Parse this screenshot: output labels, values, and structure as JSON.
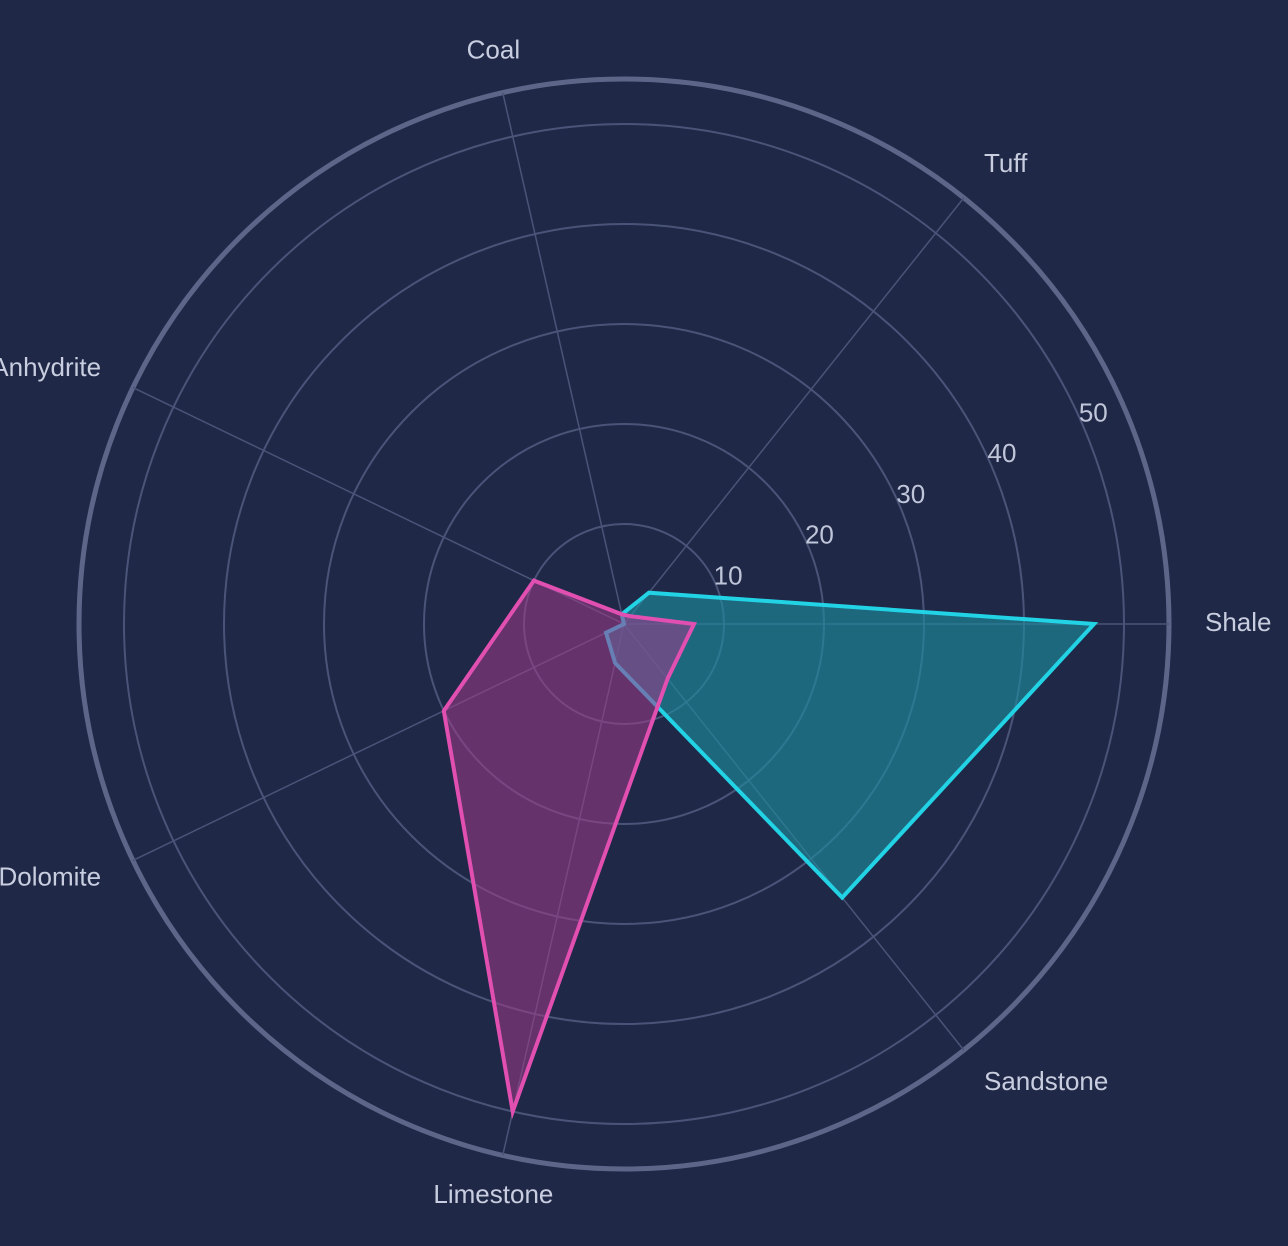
{
  "colors": {
    "background": "#1f2846",
    "grid": "#4a5478",
    "outer_ring": "#5d6689",
    "label": "#c8cee0",
    "tick_label": "#c0c6da"
  },
  "chart_data": {
    "type": "radar",
    "title": "",
    "categories": [
      "Shale",
      "Sandstone",
      "Limestone",
      "Dolomite",
      "Anhydrite",
      "Coal",
      "Tuff"
    ],
    "radial_ticks": [
      "10",
      "20",
      "30",
      "40",
      "50"
    ],
    "radial_range": [
      0,
      53
    ],
    "grid": true,
    "legend": "none",
    "series": [
      {
        "values": [
          47,
          35,
          4,
          2,
          0,
          1,
          4
        ],
        "stroke": "#22d3e6",
        "fill": "#1f8a9c",
        "fill_opacity": 0.65
      },
      {
        "values": [
          7,
          7,
          50,
          20,
          10,
          1,
          1
        ],
        "stroke": "#e14fb0",
        "fill": "#a13a8a",
        "fill_opacity": 0.55
      }
    ]
  }
}
